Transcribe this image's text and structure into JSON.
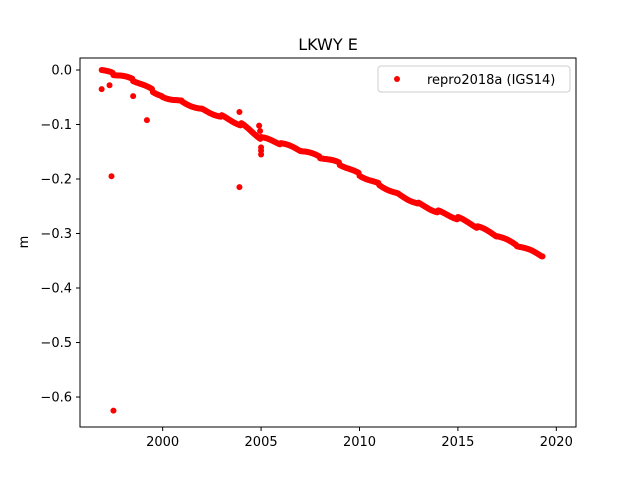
{
  "chart_data": {
    "type": "scatter",
    "title": "LKWY E",
    "xlabel": "",
    "ylabel": "m",
    "xlim": [
      1995.8,
      2021.0
    ],
    "ylim": [
      -0.655,
      0.022
    ],
    "x_ticks": [
      2000,
      2005,
      2010,
      2015,
      2020
    ],
    "x_tick_labels": [
      "2000",
      "2005",
      "2010",
      "2015",
      "2020"
    ],
    "y_ticks": [
      0.0,
      -0.1,
      -0.2,
      -0.3,
      -0.4,
      -0.5,
      -0.6
    ],
    "y_tick_labels": [
      "0.0",
      "−0.1",
      "−0.2",
      "−0.3",
      "−0.4",
      "−0.5",
      "−0.6"
    ],
    "grid": false,
    "legend_position": "top-right",
    "series": [
      {
        "name": "repro2018a (IGS14)",
        "color": "#ff0000",
        "marker": "circle",
        "trend_points": [
          {
            "x": 1996.9,
            "y": 0.0
          },
          {
            "x": 1997.5,
            "y": -0.008
          },
          {
            "x": 1998.5,
            "y": -0.018
          },
          {
            "x": 1999.5,
            "y": -0.038
          },
          {
            "x": 2000.0,
            "y": -0.048
          },
          {
            "x": 2001.0,
            "y": -0.058
          },
          {
            "x": 2002.0,
            "y": -0.072
          },
          {
            "x": 2003.0,
            "y": -0.085
          },
          {
            "x": 2004.0,
            "y": -0.1
          },
          {
            "x": 2005.0,
            "y": -0.125
          },
          {
            "x": 2006.0,
            "y": -0.135
          },
          {
            "x": 2007.0,
            "y": -0.148
          },
          {
            "x": 2008.0,
            "y": -0.16
          },
          {
            "x": 2009.0,
            "y": -0.172
          },
          {
            "x": 2010.0,
            "y": -0.192
          },
          {
            "x": 2011.0,
            "y": -0.21
          },
          {
            "x": 2012.0,
            "y": -0.228
          },
          {
            "x": 2013.0,
            "y": -0.245
          },
          {
            "x": 2014.0,
            "y": -0.26
          },
          {
            "x": 2015.0,
            "y": -0.272
          },
          {
            "x": 2016.0,
            "y": -0.288
          },
          {
            "x": 2017.0,
            "y": -0.305
          },
          {
            "x": 2018.0,
            "y": -0.322
          },
          {
            "x": 2019.3,
            "y": -0.342
          }
        ],
        "outliers": [
          {
            "x": 1996.9,
            "y": -0.035
          },
          {
            "x": 1997.3,
            "y": -0.028
          },
          {
            "x": 1997.4,
            "y": -0.195
          },
          {
            "x": 1997.5,
            "y": -0.625
          },
          {
            "x": 1998.5,
            "y": -0.048
          },
          {
            "x": 1999.2,
            "y": -0.092
          },
          {
            "x": 2003.9,
            "y": -0.077
          },
          {
            "x": 2003.9,
            "y": -0.215
          },
          {
            "x": 2004.9,
            "y": -0.102
          },
          {
            "x": 2004.95,
            "y": -0.112
          },
          {
            "x": 2005.0,
            "y": -0.142
          },
          {
            "x": 2005.0,
            "y": -0.148
          },
          {
            "x": 2005.0,
            "y": -0.155
          }
        ]
      }
    ]
  }
}
